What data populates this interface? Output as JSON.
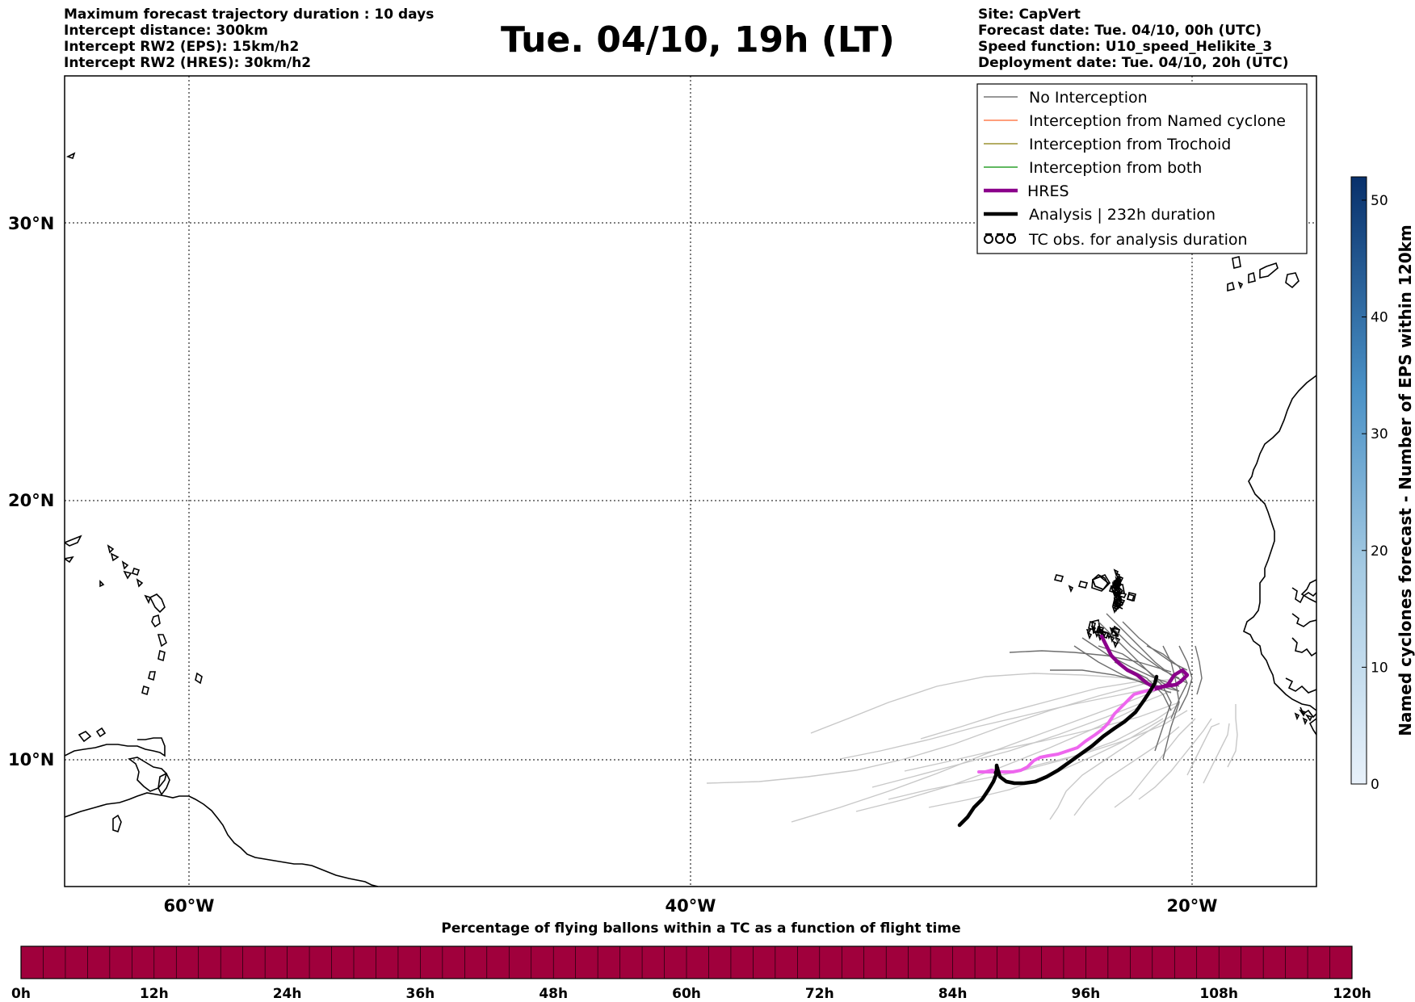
{
  "title": "Tue. 04/10, 19h (LT)",
  "header_left": [
    "Maximum forecast trajectory duration : 10 days",
    "Intercept distance: 300km",
    "Intercept RW2 (EPS):  15km/h2",
    "Intercept RW2 (HRES): 30km/h2"
  ],
  "header_right": [
    "Site: CapVert",
    "Forecast date: Tue. 04/10, 00h (UTC)",
    "Speed function: U10_speed_Helikite_3",
    "Deployment date: Tue. 04/10, 20h (UTC)"
  ],
  "map": {
    "lat_labels": [
      "30°N",
      "20°N",
      "10°N"
    ],
    "lon_labels": [
      "60°W",
      "40°W",
      "20°W"
    ],
    "legend": [
      {
        "label": "No Interception",
        "color": "#777777",
        "icon": "thin-line"
      },
      {
        "label": "Interception from Named cyclone",
        "color": "#ff7f50",
        "icon": "thin-line"
      },
      {
        "label": "Interception from Trochoid",
        "color": "#9c9231",
        "icon": "thin-line"
      },
      {
        "label": "Interception from both",
        "color": "#2ca02c",
        "icon": "thin-line"
      },
      {
        "label": "HRES",
        "color": "#8b008b",
        "icon": "thick-line"
      },
      {
        "label": "Analysis | 232h duration",
        "color": "#000000",
        "icon": "thick-line"
      },
      {
        "label": "TC obs. for analysis duration",
        "color": "#000000",
        "icon": "tc-symbols"
      }
    ],
    "colors": {
      "trajectory_light": "#c8c8c8",
      "trajectory_dark": "#6e6e6e",
      "hres": "#8b008b",
      "hres_late": "#ee66ee",
      "analysis": "#000000"
    }
  },
  "right_colorbar": {
    "label": "Named cyclones forecast - Number of EPS within 120km",
    "ticks": [
      "0",
      "10",
      "20",
      "30",
      "40",
      "50"
    ],
    "colors": [
      "#e8f1fa",
      "#08306b"
    ]
  },
  "bottom_colorbar": {
    "title": "Percentage of flying ballons within a TC as a function of flight time",
    "ticks": [
      "0h",
      "12h",
      "24h",
      "36h",
      "48h",
      "60h",
      "72h",
      "84h",
      "96h",
      "108h",
      "120h"
    ],
    "fill_color": "#a0003c",
    "fill_fraction": 1.0
  }
}
